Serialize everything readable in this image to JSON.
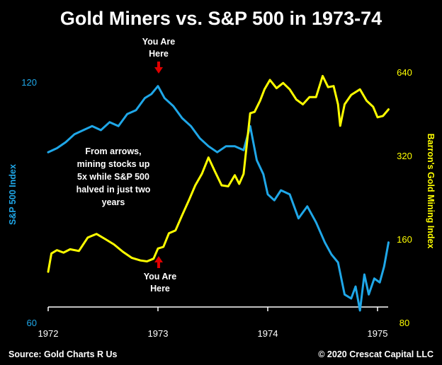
{
  "chart_data": {
    "type": "line",
    "title": "Gold Miners vs. S&P 500 in 1973-74",
    "colors": {
      "sp500": "#1fa7e8",
      "gold": "#ffff00",
      "axis": "#ffffff",
      "arrow": "#e00000",
      "background": "#000000"
    },
    "x_axis": {
      "ticks": [
        1972,
        1973,
        1974,
        1975
      ],
      "range": [
        1972.0,
        1975.1
      ]
    },
    "y_left": {
      "label": "S&P 500 Index",
      "ticks": [
        "120",
        "60"
      ],
      "range": [
        60,
        120
      ],
      "scale": "linear"
    },
    "y_right": {
      "label": "Barron's Gold Mining Index",
      "ticks": [
        "640",
        "320",
        "160",
        "80"
      ],
      "range": [
        80,
        640
      ],
      "scale": "log"
    },
    "series": [
      {
        "name": "S&P 500 Index",
        "axis": "left",
        "color": "#1fa7e8",
        "x": [
          1972.0,
          1972.08,
          1972.16,
          1972.24,
          1972.32,
          1972.4,
          1972.48,
          1972.56,
          1972.64,
          1972.72,
          1972.8,
          1972.88,
          1972.94,
          1973.0,
          1973.06,
          1973.14,
          1973.22,
          1973.3,
          1973.38,
          1973.46,
          1973.54,
          1973.62,
          1973.7,
          1973.78,
          1973.84,
          1973.9,
          1973.96,
          1974.0,
          1974.06,
          1974.12,
          1974.2,
          1974.28,
          1974.36,
          1974.44,
          1974.52,
          1974.58,
          1974.64,
          1974.7,
          1974.76,
          1974.8,
          1974.84,
          1974.88,
          1974.92,
          1974.97,
          1975.02,
          1975.06,
          1975.1
        ],
        "y": [
          102.5,
          103.5,
          105,
          107,
          108,
          109,
          108,
          110,
          109,
          112,
          113,
          116,
          117,
          119,
          116,
          114,
          111,
          109,
          106,
          104,
          102.5,
          104,
          104,
          103,
          109,
          100.5,
          97,
          92,
          90.5,
          93,
          92,
          86,
          89,
          85,
          80,
          77,
          75,
          67,
          66,
          69,
          63,
          72,
          67,
          71,
          70,
          74,
          80
        ]
      },
      {
        "name": "Barron's Gold Mining Index",
        "axis": "right",
        "color": "#ffff00",
        "x": [
          1972.0,
          1972.03,
          1972.08,
          1972.14,
          1972.2,
          1972.28,
          1972.36,
          1972.44,
          1972.52,
          1972.6,
          1972.68,
          1972.76,
          1972.84,
          1972.9,
          1972.96,
          1973.0,
          1973.05,
          1973.1,
          1973.16,
          1973.22,
          1973.28,
          1973.34,
          1973.4,
          1973.46,
          1973.52,
          1973.58,
          1973.64,
          1973.7,
          1973.74,
          1973.78,
          1973.84,
          1973.88,
          1973.93,
          1973.97,
          1974.02,
          1974.08,
          1974.14,
          1974.2,
          1974.26,
          1974.32,
          1974.38,
          1974.44,
          1974.5,
          1974.55,
          1974.6,
          1974.64,
          1974.66,
          1974.7,
          1974.76,
          1974.84,
          1974.9,
          1974.96,
          1975.0,
          1975.05,
          1975.1
        ],
        "y": [
          122,
          142,
          146,
          143,
          147,
          145,
          162,
          167,
          160,
          153,
          144,
          137,
          134,
          133,
          136,
          148,
          150,
          168,
          172,
          195,
          220,
          250,
          275,
          315,
          280,
          250,
          248,
          272,
          253,
          275,
          455,
          460,
          505,
          555,
          600,
          560,
          585,
          555,
          510,
          490,
          520,
          520,
          620,
          565,
          570,
          490,
          410,
          490,
          530,
          555,
          505,
          480,
          440,
          445,
          470
        ]
      }
    ],
    "annotations": {
      "you_are_here_top": {
        "line1": "You Are",
        "line2": "Here",
        "x": 1973.0
      },
      "you_are_here_bottom": {
        "line1": "You Are",
        "line2": "Here",
        "x": 1973.0
      },
      "note": [
        "From arrows,",
        "mining stocks up",
        "5x while S&P 500",
        "halved in just two",
        "years"
      ]
    },
    "source": "Source: Gold Charts R Us",
    "copyright": "© 2020 Crescat Capital LLC"
  }
}
